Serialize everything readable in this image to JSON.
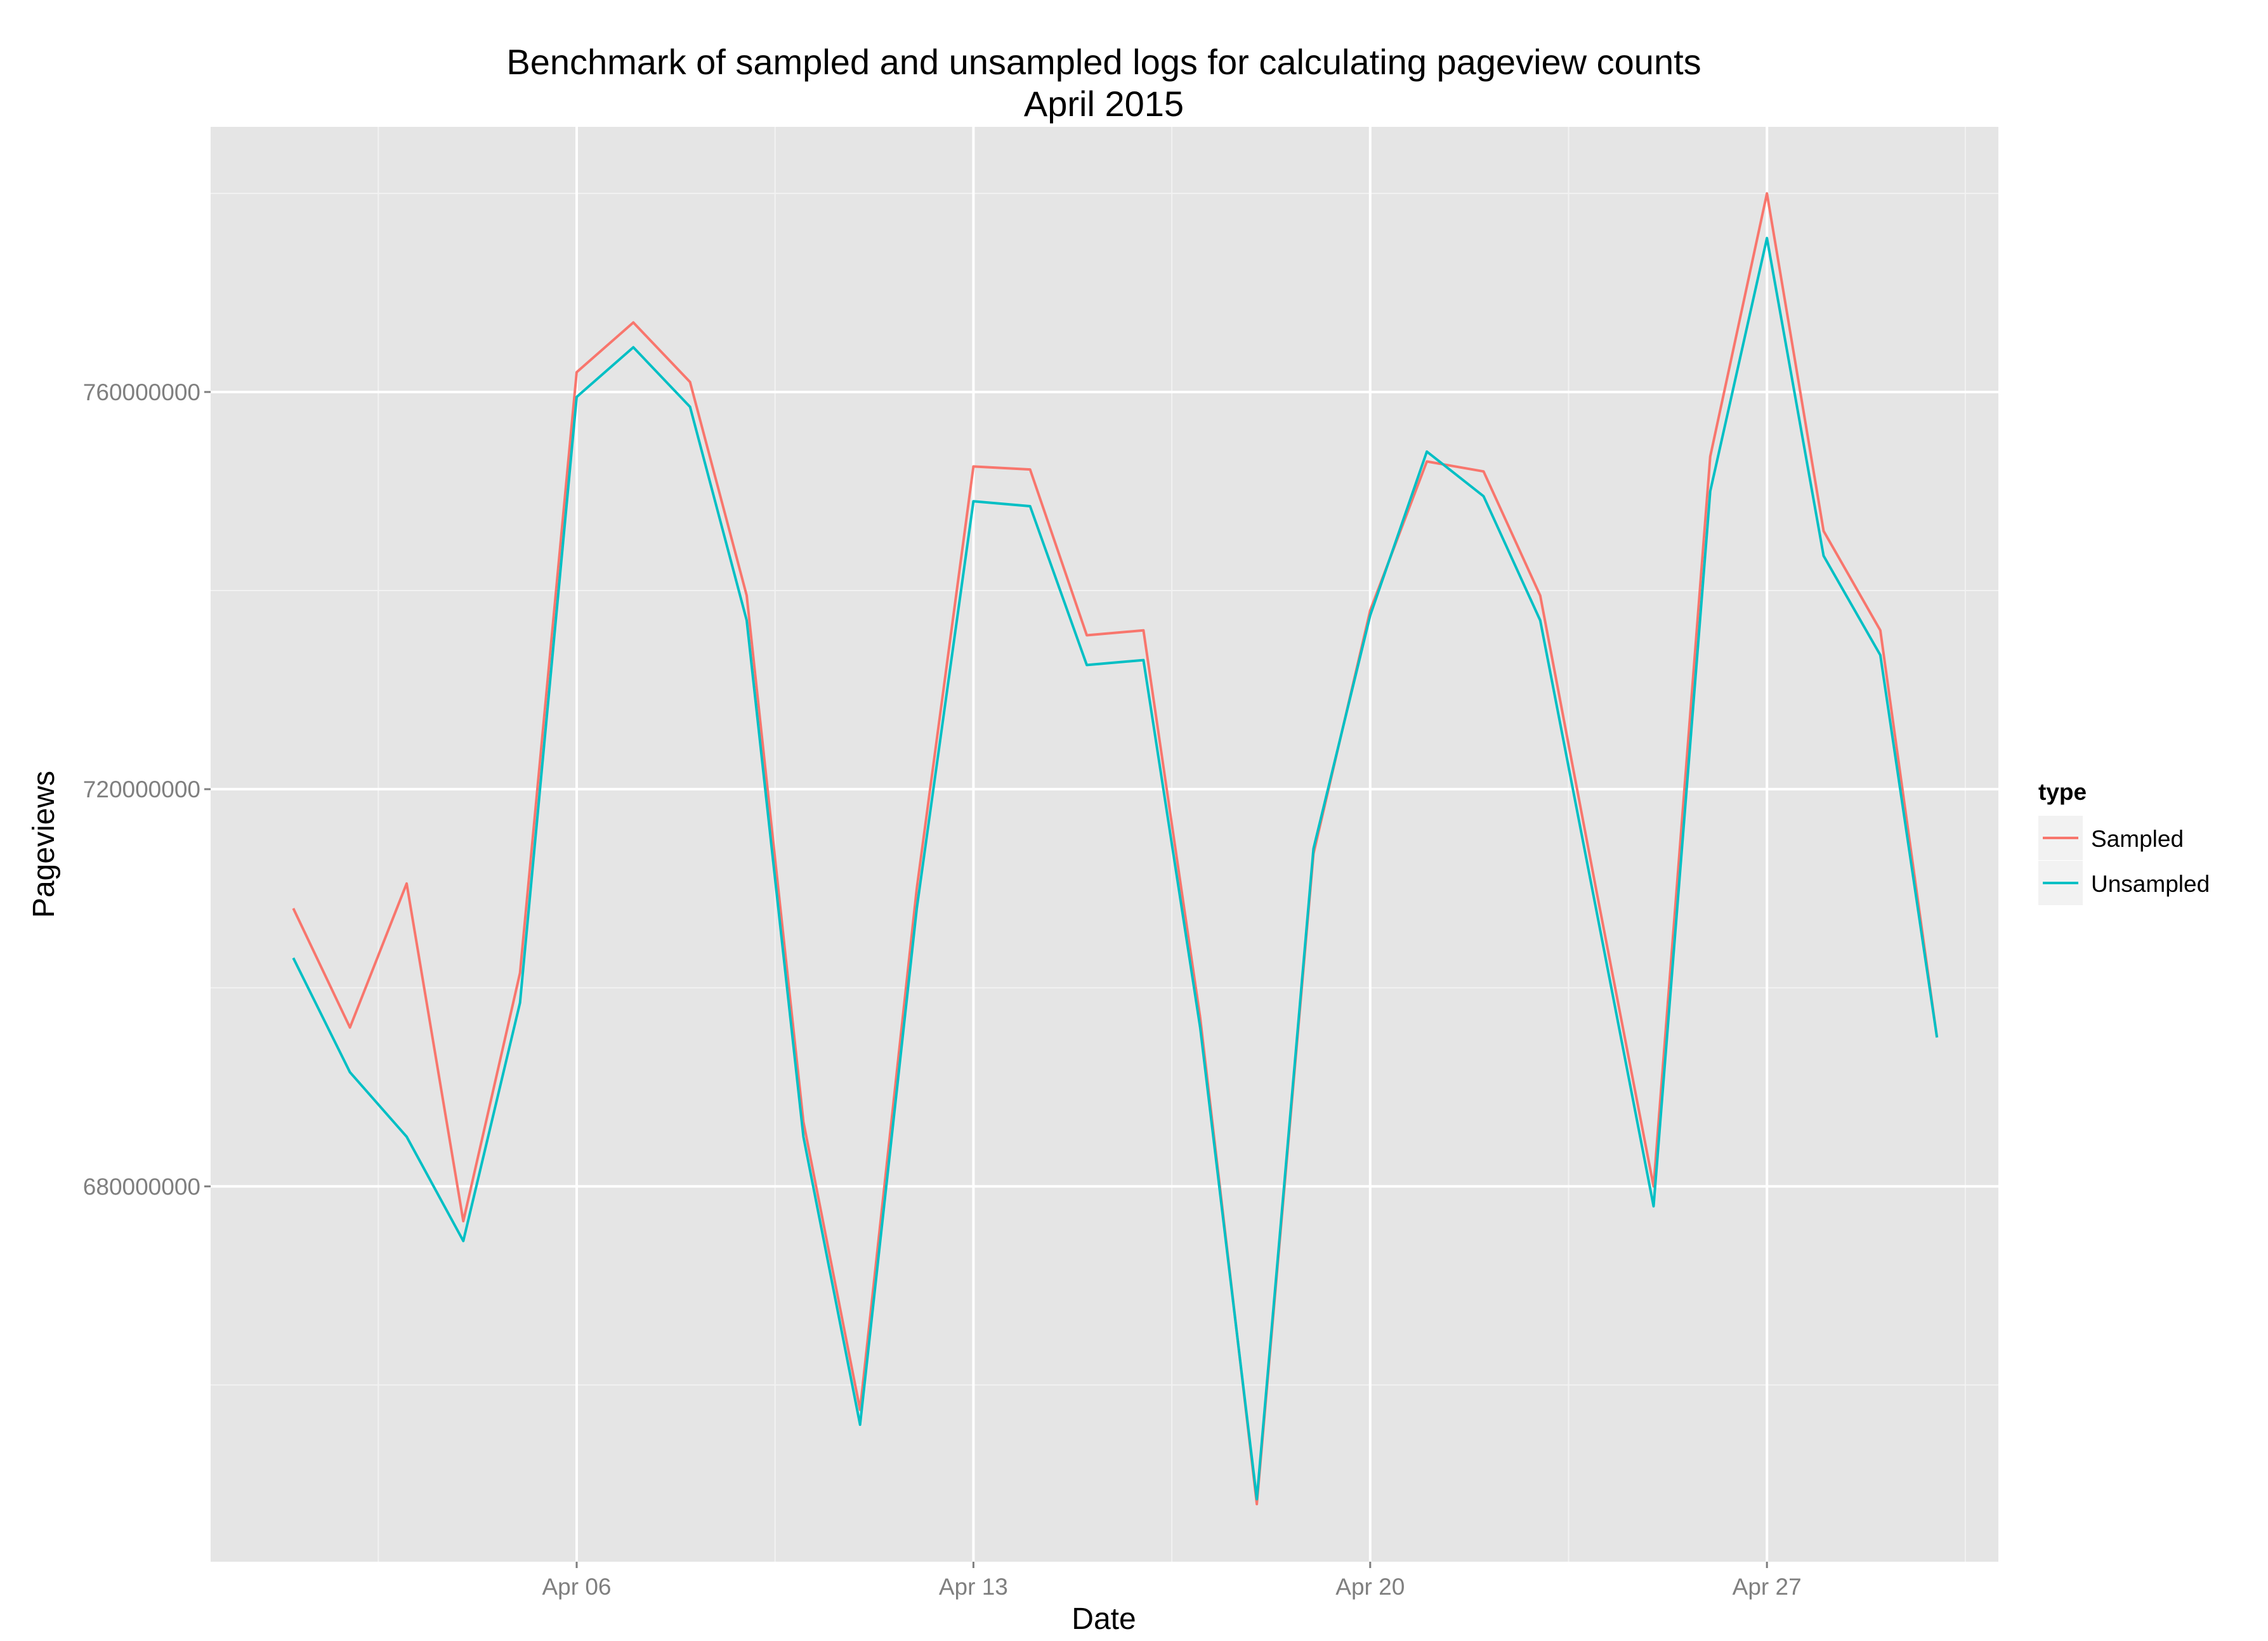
{
  "chart_data": {
    "type": "line",
    "title": "Benchmark of sampled and unsampled logs for calculating pageview counts",
    "subtitle": "April 2015",
    "xlabel": "Date",
    "ylabel": "Pageviews",
    "x": [
      "2015-04-01",
      "2015-04-02",
      "2015-04-03",
      "2015-04-04",
      "2015-04-05",
      "2015-04-06",
      "2015-04-07",
      "2015-04-08",
      "2015-04-09",
      "2015-04-10",
      "2015-04-11",
      "2015-04-12",
      "2015-04-13",
      "2015-04-14",
      "2015-04-15",
      "2015-04-16",
      "2015-04-17",
      "2015-04-18",
      "2015-04-19",
      "2015-04-20",
      "2015-04-21",
      "2015-04-22",
      "2015-04-23",
      "2015-04-24",
      "2015-04-25",
      "2015-04-26",
      "2015-04-27",
      "2015-04-28",
      "2015-04-29",
      "2015-04-30"
    ],
    "x_ticks": [
      {
        "label": "Apr 06",
        "date": "2015-04-06"
      },
      {
        "label": "Apr 13",
        "date": "2015-04-13"
      },
      {
        "label": "Apr 20",
        "date": "2015-04-20"
      },
      {
        "label": "Apr 27",
        "date": "2015-04-27"
      }
    ],
    "x_minor_ticks": [
      "2015-04-02T12:00",
      "2015-04-09T12:00",
      "2015-04-16T12:00",
      "2015-04-23T12:00",
      "2015-04-30T12:00"
    ],
    "y_ticks": [
      {
        "label": "680000000",
        "value": 680000000
      },
      {
        "label": "720000000",
        "value": 720000000
      },
      {
        "label": "760000000",
        "value": 760000000
      }
    ],
    "y_minor_ticks": [
      660000000,
      700000000,
      740000000,
      780000000
    ],
    "xlim": [
      "2015-03-30T13:00",
      "2015-05-01T02:00"
    ],
    "ylim": [
      642200000,
      786700000
    ],
    "grid": true,
    "legend": {
      "title": "type",
      "position": "right"
    },
    "series": [
      {
        "name": "Sampled",
        "color": "#f8766d",
        "values": [
          708000000,
          696000000,
          710500000,
          676500000,
          701500000,
          762000000,
          767000000,
          761000000,
          739500000,
          686500000,
          657500000,
          710000000,
          752500000,
          752200000,
          735500000,
          736000000,
          697000000,
          648000000,
          713500000,
          738000000,
          753000000,
          752000000,
          739500000,
          709500000,
          680000000,
          753500000,
          780000000,
          746000000,
          736000000,
          695000000
        ]
      },
      {
        "name": "Unsampled",
        "color": "#00bfc4",
        "values": [
          703000000,
          691500000,
          685000000,
          674500000,
          698500000,
          759500000,
          764500000,
          758500000,
          737000000,
          685000000,
          656000000,
          708000000,
          749000000,
          748500000,
          732500000,
          733000000,
          696000000,
          648500000,
          714000000,
          737500000,
          754000000,
          749500000,
          737000000,
          707500000,
          678000000,
          750000000,
          775500000,
          743500000,
          733500000,
          695000000
        ]
      }
    ]
  }
}
